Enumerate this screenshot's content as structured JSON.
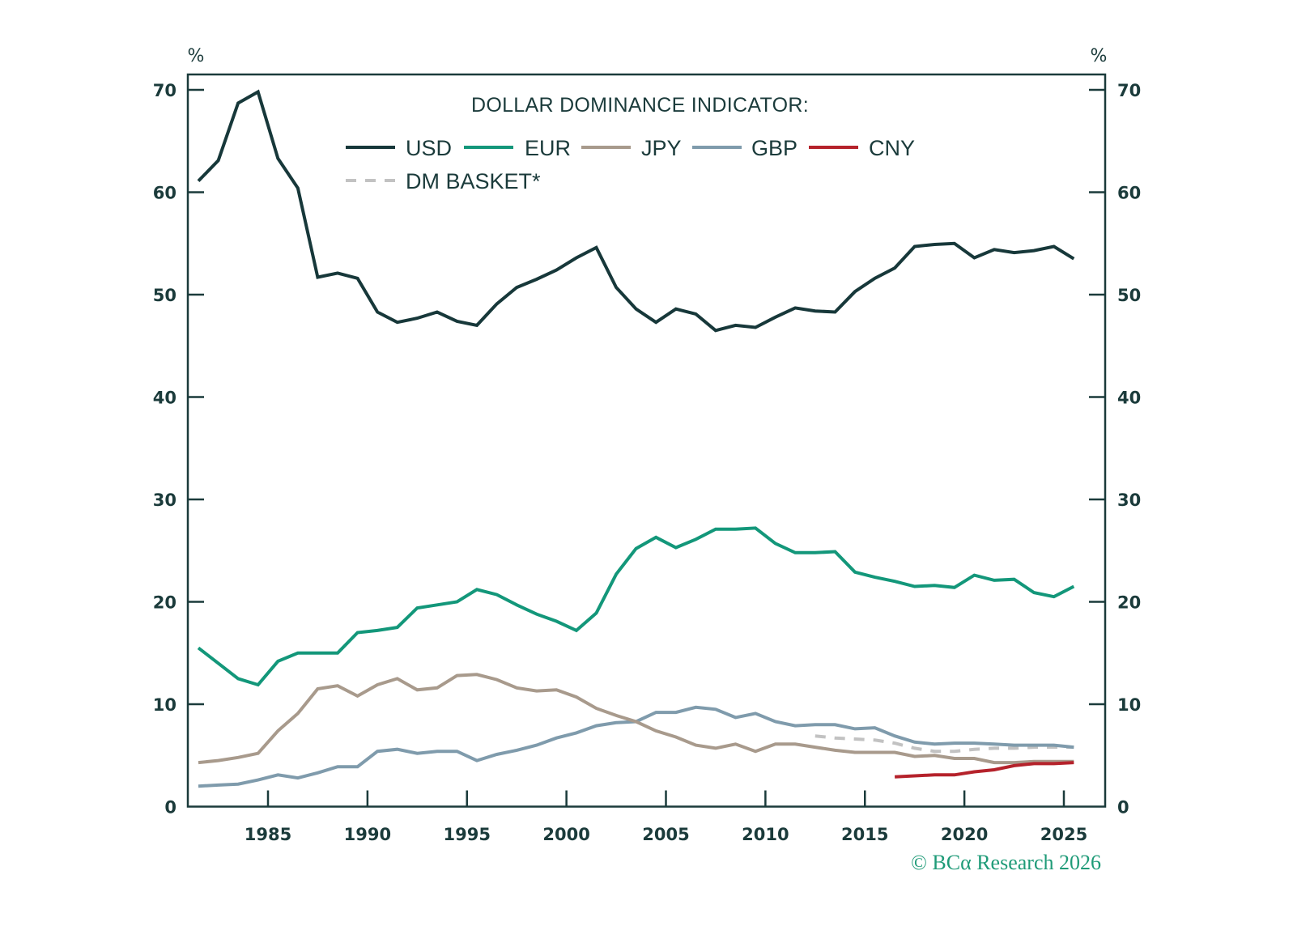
{
  "chart_data": {
    "type": "line",
    "title": "DOLLAR DOMINANCE INDICATOR:",
    "ylabel_left": "%",
    "ylabel_right": "%",
    "xlabel": "",
    "xlim": [
      1981,
      2026.5
    ],
    "ylim": [
      0,
      70
    ],
    "yticks": [
      0,
      10,
      20,
      30,
      40,
      50,
      60,
      70
    ],
    "xticks": [
      1985,
      1990,
      1995,
      2000,
      2005,
      2010,
      2015,
      2020,
      2025
    ],
    "grid": false,
    "legend_placement": "top-center",
    "point_offset_years": 0.5,
    "series": [
      {
        "name": "USD",
        "color": "#17383a",
        "dashed": false,
        "start_year": 1981,
        "values": [
          61.1,
          63.1,
          68.7,
          69.8,
          63.3,
          60.4,
          51.7,
          52.1,
          51.6,
          48.3,
          47.3,
          47.7,
          48.3,
          47.4,
          47.0,
          49.1,
          50.7,
          51.5,
          52.4,
          53.6,
          54.6,
          50.7,
          48.6,
          47.3,
          48.6,
          48.1,
          46.5,
          47.0,
          46.8,
          47.8,
          48.7,
          48.4,
          48.3,
          50.3,
          51.6,
          52.6,
          54.7,
          54.9,
          55.0,
          53.6,
          54.4,
          54.1,
          54.3,
          54.7,
          53.5
        ]
      },
      {
        "name": "EUR",
        "color": "#13977a",
        "dashed": false,
        "start_year": 1981,
        "values": [
          15.5,
          14.0,
          12.5,
          11.9,
          14.2,
          15.0,
          15.0,
          15.0,
          17.0,
          17.2,
          17.5,
          19.4,
          19.7,
          20.0,
          21.2,
          20.7,
          19.7,
          18.8,
          18.1,
          17.2,
          18.9,
          22.7,
          25.2,
          26.3,
          25.3,
          26.1,
          27.1,
          27.1,
          27.2,
          25.7,
          24.8,
          24.8,
          24.9,
          22.9,
          22.4,
          22.0,
          21.5,
          21.6,
          21.4,
          22.6,
          22.1,
          22.2,
          20.9,
          20.5,
          21.5
        ]
      },
      {
        "name": "JPY",
        "color": "#a89a8c",
        "dashed": false,
        "start_year": 1981,
        "values": [
          4.3,
          4.5,
          4.8,
          5.2,
          7.4,
          9.1,
          11.5,
          11.8,
          10.8,
          11.9,
          12.5,
          11.4,
          11.6,
          12.8,
          12.9,
          12.4,
          11.6,
          11.3,
          11.4,
          10.7,
          9.6,
          8.9,
          8.3,
          7.4,
          6.8,
          6.0,
          5.7,
          6.1,
          5.4,
          6.1,
          6.1,
          5.8,
          5.5,
          5.3,
          5.3,
          5.3,
          4.9,
          5.0,
          4.7,
          4.7,
          4.3,
          4.3,
          4.4,
          4.4,
          4.4
        ]
      },
      {
        "name": "GBP",
        "color": "#7f9bac",
        "dashed": false,
        "start_year": 1981,
        "values": [
          2.0,
          2.1,
          2.2,
          2.6,
          3.1,
          2.8,
          3.3,
          3.9,
          3.9,
          5.4,
          5.6,
          5.2,
          5.4,
          5.4,
          4.5,
          5.1,
          5.5,
          6.0,
          6.7,
          7.2,
          7.9,
          8.2,
          8.3,
          9.2,
          9.2,
          9.7,
          9.5,
          8.7,
          9.1,
          8.3,
          7.9,
          8.0,
          8.0,
          7.6,
          7.7,
          6.9,
          6.3,
          6.1,
          6.2,
          6.2,
          6.1,
          6.0,
          6.0,
          6.0,
          5.8
        ]
      },
      {
        "name": "CNY",
        "color": "#b5222b",
        "dashed": false,
        "start_year": 2016,
        "values": [
          2.9,
          3.0,
          3.1,
          3.1,
          3.4,
          3.6,
          4.0,
          4.2,
          4.2,
          4.3
        ]
      },
      {
        "name": "DM BASKET*",
        "color": "#c2c2c2",
        "dashed": true,
        "start_year": 2012,
        "values": [
          6.9,
          6.7,
          6.6,
          6.5,
          6.2,
          5.7,
          5.4,
          5.4,
          5.6,
          5.7,
          5.7,
          5.8,
          5.8,
          5.8
        ]
      }
    ]
  },
  "legend": {
    "row1": [
      "USD",
      "EUR",
      "JPY",
      "GBP",
      "CNY"
    ],
    "row2": [
      "DM BASKET*"
    ]
  },
  "footer": {
    "copyright": "© BCα Research 2026"
  },
  "colors": {
    "text": "#1b3b3b",
    "footer": "#1f9b78"
  }
}
